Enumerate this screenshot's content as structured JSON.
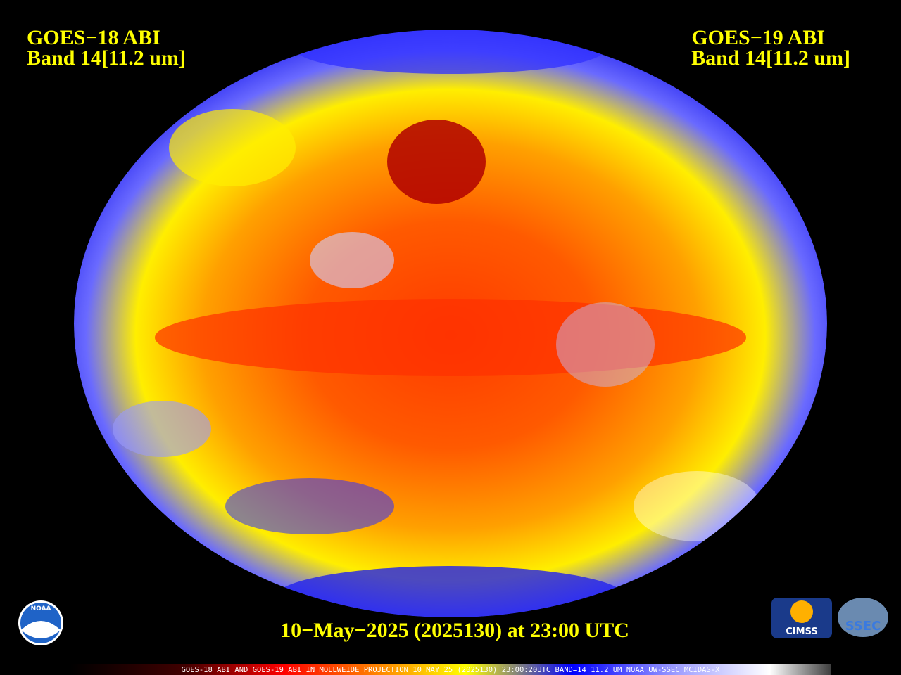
{
  "left_label": {
    "line1": "GOES−18 ABI",
    "line2": "Band 14[11.2 um]"
  },
  "right_label": {
    "line1": "GOES−19 ABI",
    "line2": "Band 14[11.2 um]"
  },
  "timestamp": "10−May−2025 (2025130) at 23:00 UTC",
  "footer": "GOES-18 ABI AND GOES-19 ABI IN MOLLWEIDE PROJECTION 10 MAY 25 (2025130) 23:00:20UTC BAND=14 11.2 UM NOAA UW-SSEC MCIDAS-X",
  "logos": {
    "noaa": "NOAA",
    "cimss": "CIMSS",
    "ssec": "SSEC"
  }
}
